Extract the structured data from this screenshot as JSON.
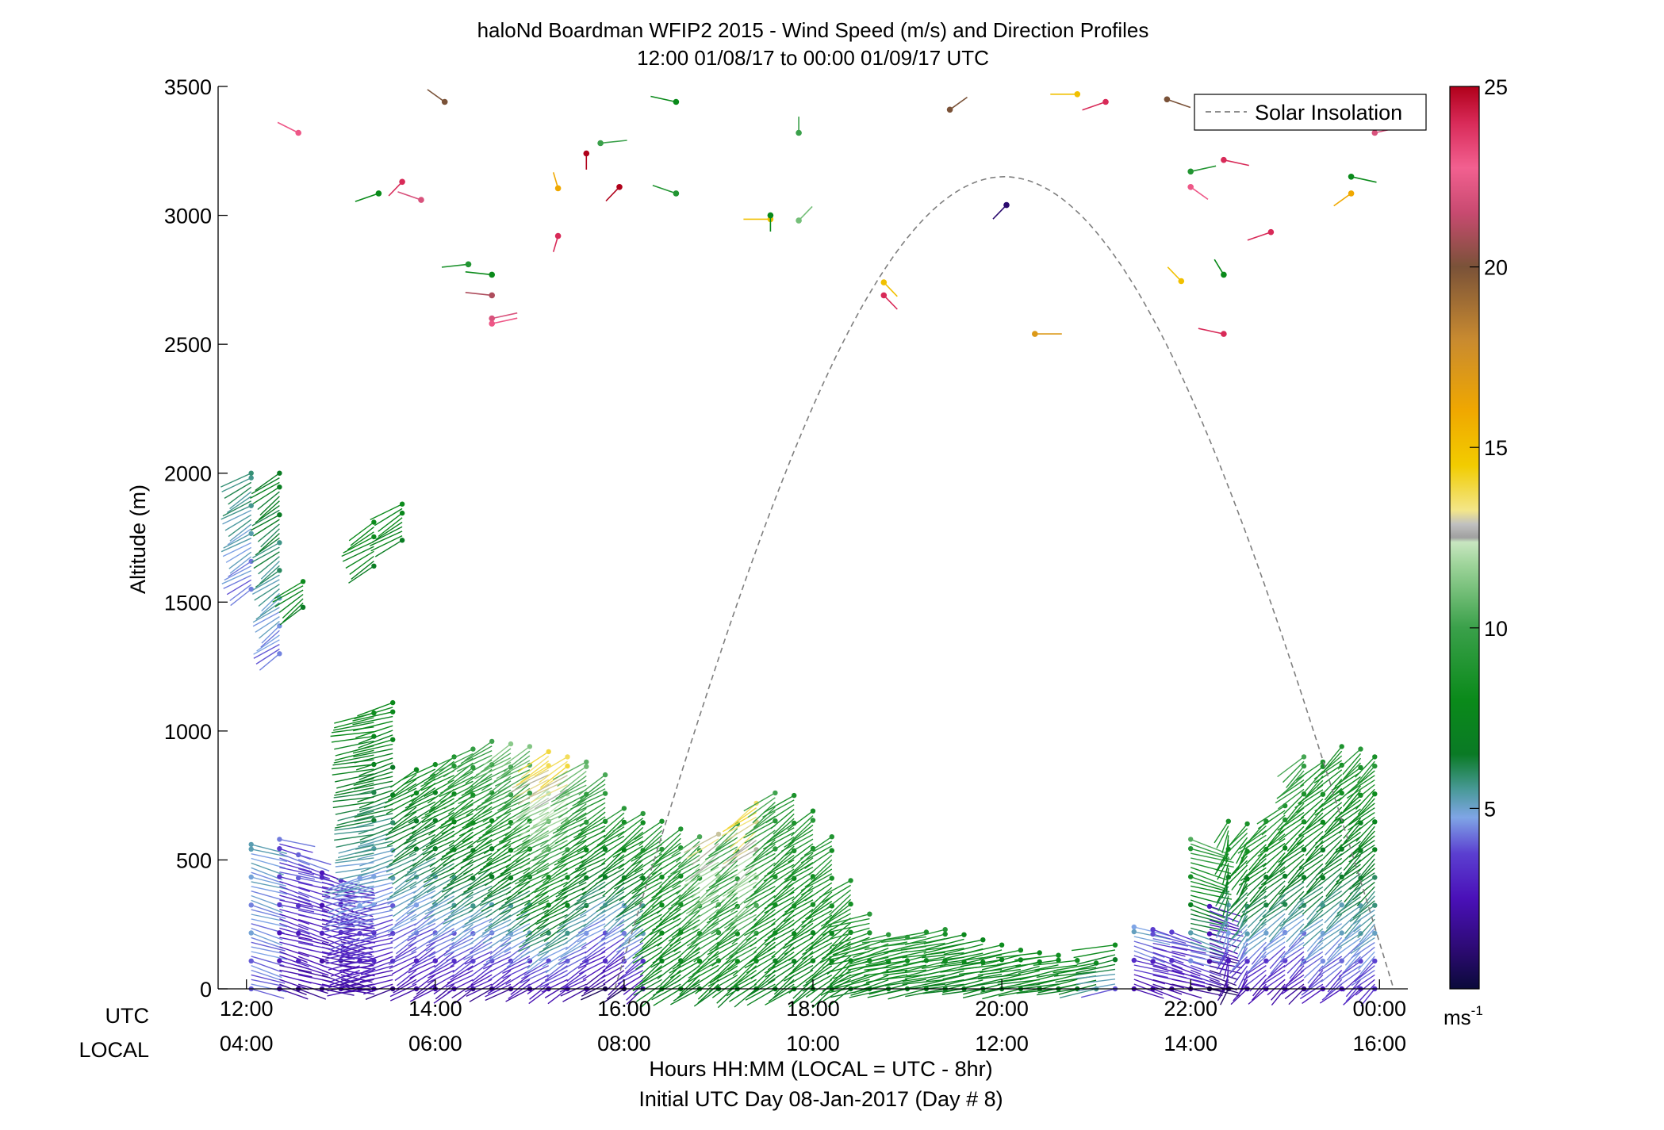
{
  "chart_data": {
    "type": "scatter",
    "title": "haloNd Boardman WFIP2 2015 - Wind Speed (m/s) and Direction Profiles",
    "subtitle": "12:00 01/08/17 to 00:00 01/09/17  UTC",
    "ylabel": "Altitude (m)",
    "xlabel": "Hours HH:MM  (LOCAL = UTC - 8hr)",
    "xlabel2": "Initial UTC Day 08-Jan-2017 (Day # 8)",
    "x_row_labels": [
      "UTC",
      "LOCAL"
    ],
    "ylim": [
      0,
      3500
    ],
    "xlim_hours": [
      11.7,
      24.3
    ],
    "yticks": [
      0,
      500,
      1000,
      1500,
      2000,
      2500,
      3000,
      3500
    ],
    "xticks_utc": [
      "12:00",
      "14:00",
      "16:00",
      "18:00",
      "20:00",
      "22:00",
      "00:00"
    ],
    "xticks_local": [
      "04:00",
      "06:00",
      "08:00",
      "10:00",
      "12:00",
      "14:00",
      "16:00"
    ],
    "xtick_hours": [
      12,
      14,
      16,
      18,
      20,
      22,
      24
    ],
    "grid": false,
    "legend": {
      "entries": [
        "Solar Insolation"
      ],
      "placement": "top-right"
    },
    "colorbar": {
      "ticks": [
        5,
        10,
        15,
        20,
        25
      ],
      "range": [
        0,
        25
      ],
      "unit_label": "ms",
      "unit_exp": "-1"
    },
    "solar_insolation": {
      "style": "dashed",
      "color": "#7f7f7f",
      "start_hour": 15.9,
      "peak_hour": 20.0,
      "end_hour": 24.15,
      "peak_altitude": 3150
    },
    "scattered_barbs_upper": [
      {
        "t": 12.55,
        "alt": 3320,
        "speed": 23,
        "dir": 230
      },
      {
        "t": 13.4,
        "alt": 3085,
        "speed": 8,
        "dir": 300
      },
      {
        "t": 13.65,
        "alt": 3130,
        "speed": 24,
        "dir": 330
      },
      {
        "t": 13.85,
        "alt": 3060,
        "speed": 22,
        "dir": 240
      },
      {
        "t": 14.1,
        "alt": 3440,
        "speed": 20,
        "dir": 220
      },
      {
        "t": 14.35,
        "alt": 2810,
        "speed": 9,
        "dir": 280
      },
      {
        "t": 14.6,
        "alt": 2770,
        "speed": 8,
        "dir": 260
      },
      {
        "t": 14.6,
        "alt": 2690,
        "speed": 21,
        "dir": 260
      },
      {
        "t": 14.6,
        "alt": 2600,
        "speed": 22,
        "dir": 110
      },
      {
        "t": 14.6,
        "alt": 2580,
        "speed": 23,
        "dir": 110
      },
      {
        "t": 15.3,
        "alt": 3105,
        "speed": 16,
        "dir": 190
      },
      {
        "t": 15.3,
        "alt": 2920,
        "speed": 24,
        "dir": 350
      },
      {
        "t": 15.6,
        "alt": 3240,
        "speed": 25,
        "dir": 0
      },
      {
        "t": 15.75,
        "alt": 3280,
        "speed": 10,
        "dir": 100
      },
      {
        "t": 15.95,
        "alt": 3110,
        "speed": 25,
        "dir": 330
      },
      {
        "t": 16.55,
        "alt": 3440,
        "speed": 8,
        "dir": 250
      },
      {
        "t": 16.55,
        "alt": 3085,
        "speed": 9,
        "dir": 240
      },
      {
        "t": 17.55,
        "alt": 2985,
        "speed": 15,
        "dir": 270
      },
      {
        "t": 17.55,
        "alt": 3000,
        "speed": 8,
        "dir": 0
      },
      {
        "t": 17.85,
        "alt": 3320,
        "speed": 10,
        "dir": 180
      },
      {
        "t": 17.85,
        "alt": 2980,
        "speed": 11,
        "dir": 150
      },
      {
        "t": 18.75,
        "alt": 2690,
        "speed": 24,
        "dir": 30
      },
      {
        "t": 18.75,
        "alt": 2740,
        "speed": 15,
        "dir": 30
      },
      {
        "t": 19.45,
        "alt": 3410,
        "speed": 20,
        "dir": 140
      },
      {
        "t": 20.05,
        "alt": 3040,
        "speed": 1,
        "dir": 330
      },
      {
        "t": 20.35,
        "alt": 2540,
        "speed": 17,
        "dir": 90
      },
      {
        "t": 20.8,
        "alt": 3470,
        "speed": 15,
        "dir": 270
      },
      {
        "t": 21.1,
        "alt": 3440,
        "speed": 24,
        "dir": 300
      },
      {
        "t": 21.75,
        "alt": 3450,
        "speed": 20,
        "dir": 60
      },
      {
        "t": 22.0,
        "alt": 3170,
        "speed": 9,
        "dir": 110
      },
      {
        "t": 22.0,
        "alt": 3110,
        "speed": 23,
        "dir": 40
      },
      {
        "t": 21.9,
        "alt": 2745,
        "speed": 15,
        "dir": 210
      },
      {
        "t": 22.35,
        "alt": 3215,
        "speed": 24,
        "dir": 70
      },
      {
        "t": 22.35,
        "alt": 2770,
        "speed": 8,
        "dir": 200
      },
      {
        "t": 22.35,
        "alt": 2540,
        "speed": 24,
        "dir": 250
      },
      {
        "t": 22.85,
        "alt": 2935,
        "speed": 24,
        "dir": 300
      },
      {
        "t": 23.7,
        "alt": 3150,
        "speed": 8,
        "dir": 70
      },
      {
        "t": 23.7,
        "alt": 3085,
        "speed": 16,
        "dir": 320
      },
      {
        "t": 23.95,
        "alt": 3320,
        "speed": 22,
        "dir": 110
      }
    ],
    "profiles": [
      {
        "t": 12.05,
        "top": 560,
        "low": 4,
        "high": 5,
        "dir": 60
      },
      {
        "t": 12.05,
        "top": 2000,
        "low": 4,
        "high": 6,
        "dir": 320,
        "bottom": 1550
      },
      {
        "t": 12.35,
        "top": 2000,
        "low": 4,
        "high": 7,
        "dir": 325,
        "bottom": 1300
      },
      {
        "t": 12.35,
        "top": 580,
        "low": 2,
        "high": 4,
        "dir": 60
      },
      {
        "t": 12.55,
        "top": 520,
        "low": 2,
        "high": 4,
        "dir": 60
      },
      {
        "t": 12.6,
        "top": 1580,
        "low": 7,
        "high": 8,
        "dir": 325,
        "bottom": 1480
      },
      {
        "t": 12.8,
        "top": 450,
        "low": 2,
        "high": 3,
        "dir": 60
      },
      {
        "t": 13.0,
        "top": 420,
        "low": 2,
        "high": 3,
        "dir": 70
      },
      {
        "t": 13.2,
        "top": 430,
        "low": 2,
        "high": 5,
        "dir": 300
      },
      {
        "t": 13.35,
        "top": 1070,
        "low": 2,
        "high": 8,
        "dir": 290
      },
      {
        "t": 13.35,
        "top": 1810,
        "low": 7,
        "high": 8,
        "dir": 320,
        "bottom": 1640
      },
      {
        "t": 13.55,
        "top": 1110,
        "low": 2,
        "high": 8,
        "dir": 300
      },
      {
        "t": 13.65,
        "top": 1880,
        "low": 7,
        "high": 8,
        "dir": 320,
        "bottom": 1740
      },
      {
        "t": 13.8,
        "top": 850,
        "low": 2,
        "high": 8,
        "dir": 320
      },
      {
        "t": 14.0,
        "top": 870,
        "low": 2,
        "high": 8,
        "dir": 320
      },
      {
        "t": 14.2,
        "top": 900,
        "low": 2,
        "high": 9,
        "dir": 320
      },
      {
        "t": 14.4,
        "top": 930,
        "low": 2,
        "high": 10,
        "dir": 320
      },
      {
        "t": 14.6,
        "top": 960,
        "low": 2,
        "high": 10,
        "dir": 320
      },
      {
        "t": 14.8,
        "top": 950,
        "low": 2,
        "high": 11,
        "dir": 320
      },
      {
        "t": 15.0,
        "top": 940,
        "low": 2,
        "high": 11,
        "dir": 320
      },
      {
        "t": 15.2,
        "top": 920,
        "low": 2,
        "high": 14,
        "dir": 320
      },
      {
        "t": 15.4,
        "top": 900,
        "low": 2,
        "high": 14,
        "dir": 320
      },
      {
        "t": 15.6,
        "top": 880,
        "low": 2,
        "high": 11,
        "dir": 320
      },
      {
        "t": 15.8,
        "top": 830,
        "low": 1,
        "high": 10,
        "dir": 320
      },
      {
        "t": 16.0,
        "top": 700,
        "low": 1,
        "high": 9,
        "dir": 325
      },
      {
        "t": 16.2,
        "top": 680,
        "low": 2,
        "high": 9,
        "dir": 325
      },
      {
        "t": 16.4,
        "top": 650,
        "low": 7,
        "high": 9,
        "dir": 325
      },
      {
        "t": 16.6,
        "top": 620,
        "low": 7,
        "high": 9,
        "dir": 325
      },
      {
        "t": 16.8,
        "top": 590,
        "low": 7,
        "high": 10,
        "dir": 325
      },
      {
        "t": 17.0,
        "top": 600,
        "low": 7,
        "high": 13,
        "dir": 325
      },
      {
        "t": 17.2,
        "top": 640,
        "low": 7,
        "high": 10,
        "dir": 325
      },
      {
        "t": 17.4,
        "top": 720,
        "low": 7,
        "high": 14,
        "dir": 325
      },
      {
        "t": 17.6,
        "top": 760,
        "low": 7,
        "high": 10,
        "dir": 325
      },
      {
        "t": 17.8,
        "top": 750,
        "low": 7,
        "high": 9,
        "dir": 325
      },
      {
        "t": 18.0,
        "top": 690,
        "low": 7,
        "high": 9,
        "dir": 325
      },
      {
        "t": 18.2,
        "top": 590,
        "low": 7,
        "high": 9,
        "dir": 325
      },
      {
        "t": 18.4,
        "top": 420,
        "low": 7,
        "high": 9,
        "dir": 325
      },
      {
        "t": 18.6,
        "top": 290,
        "low": 7,
        "high": 9,
        "dir": 300
      },
      {
        "t": 18.8,
        "top": 210,
        "low": 7,
        "high": 9,
        "dir": 300
      },
      {
        "t": 19.0,
        "top": 200,
        "low": 7,
        "high": 9,
        "dir": 290
      },
      {
        "t": 19.2,
        "top": 220,
        "low": 7,
        "high": 9,
        "dir": 290
      },
      {
        "t": 19.4,
        "top": 230,
        "low": 7,
        "high": 9,
        "dir": 290
      },
      {
        "t": 19.6,
        "top": 210,
        "low": 7,
        "high": 8,
        "dir": 290
      },
      {
        "t": 19.8,
        "top": 190,
        "low": 7,
        "high": 8,
        "dir": 290
      },
      {
        "t": 20.0,
        "top": 170,
        "low": 7,
        "high": 8,
        "dir": 290
      },
      {
        "t": 20.2,
        "top": 150,
        "low": 7,
        "high": 8,
        "dir": 290
      },
      {
        "t": 20.4,
        "top": 140,
        "low": 7,
        "high": 8,
        "dir": 290
      },
      {
        "t": 20.6,
        "top": 130,
        "low": 7,
        "high": 8,
        "dir": 290
      },
      {
        "t": 20.8,
        "top": 110,
        "low": 7,
        "high": 8,
        "dir": 290
      },
      {
        "t": 21.0,
        "top": 100,
        "low": 6,
        "high": 8,
        "dir": 290
      },
      {
        "t": 21.2,
        "top": 170,
        "low": 4,
        "high": 8,
        "dir": 290
      },
      {
        "t": 21.4,
        "top": 240,
        "low": 2,
        "high": 5,
        "dir": 60
      },
      {
        "t": 21.6,
        "top": 230,
        "low": 2,
        "high": 4,
        "dir": 60
      },
      {
        "t": 21.8,
        "top": 220,
        "low": 2,
        "high": 4,
        "dir": 60
      },
      {
        "t": 22.0,
        "top": 580,
        "low": 2,
        "high": 10,
        "dir": 60
      },
      {
        "t": 22.2,
        "top": 320,
        "low": 1,
        "high": 3,
        "dir": 60
      },
      {
        "t": 22.4,
        "top": 650,
        "low": 1,
        "high": 9,
        "dir": 350
      },
      {
        "t": 22.6,
        "top": 640,
        "low": 2,
        "high": 9,
        "dir": 340
      },
      {
        "t": 22.8,
        "top": 650,
        "low": 2,
        "high": 9,
        "dir": 330
      },
      {
        "t": 23.0,
        "top": 710,
        "low": 2,
        "high": 9,
        "dir": 330
      },
      {
        "t": 23.2,
        "top": 900,
        "low": 2,
        "high": 10,
        "dir": 330
      },
      {
        "t": 23.4,
        "top": 880,
        "low": 3,
        "high": 9,
        "dir": 330
      },
      {
        "t": 23.6,
        "top": 940,
        "low": 3,
        "high": 9,
        "dir": 330
      },
      {
        "t": 23.8,
        "top": 930,
        "low": 3,
        "high": 9,
        "dir": 330
      },
      {
        "t": 23.95,
        "top": 900,
        "low": 3,
        "high": 9,
        "dir": 330
      }
    ]
  }
}
